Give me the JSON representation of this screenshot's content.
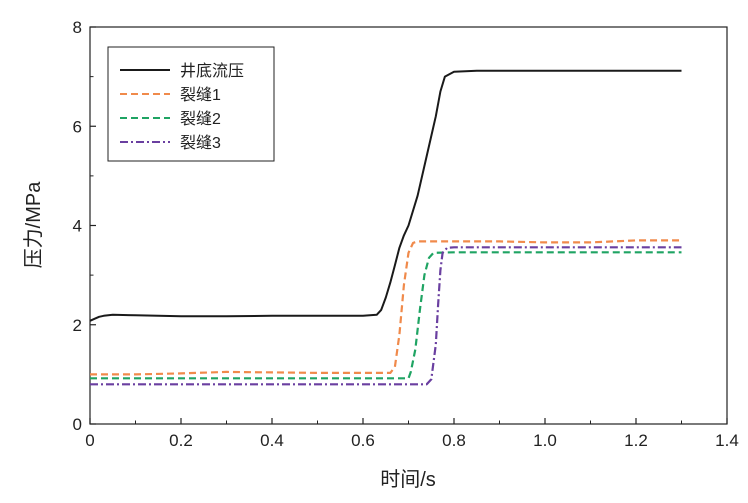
{
  "chart_data": {
    "type": "line",
    "title": "",
    "xlabel": "时间/s",
    "ylabel": "压力/MPa",
    "xlim": [
      0,
      1.4
    ],
    "ylim": [
      0,
      8
    ],
    "xticks": [
      "0",
      "0.2",
      "0.4",
      "0.6",
      "0.8",
      "1.0",
      "1.2",
      "1.4"
    ],
    "yticks": [
      "0",
      "2",
      "4",
      "6",
      "8"
    ],
    "grid": false,
    "legend_position": "top-left",
    "series": [
      {
        "name": "井底流压",
        "color": "#1a1a1a",
        "dash": "solid",
        "points": [
          [
            0.0,
            2.08
          ],
          [
            0.01,
            2.12
          ],
          [
            0.02,
            2.16
          ],
          [
            0.03,
            2.18
          ],
          [
            0.05,
            2.2
          ],
          [
            0.1,
            2.19
          ],
          [
            0.2,
            2.17
          ],
          [
            0.3,
            2.17
          ],
          [
            0.4,
            2.18
          ],
          [
            0.5,
            2.18
          ],
          [
            0.6,
            2.18
          ],
          [
            0.63,
            2.2
          ],
          [
            0.64,
            2.3
          ],
          [
            0.65,
            2.55
          ],
          [
            0.66,
            2.85
          ],
          [
            0.67,
            3.2
          ],
          [
            0.68,
            3.55
          ],
          [
            0.69,
            3.8
          ],
          [
            0.7,
            4.0
          ],
          [
            0.72,
            4.6
          ],
          [
            0.74,
            5.4
          ],
          [
            0.76,
            6.2
          ],
          [
            0.77,
            6.7
          ],
          [
            0.78,
            7.0
          ],
          [
            0.8,
            7.1
          ],
          [
            0.85,
            7.12
          ],
          [
            1.0,
            7.12
          ],
          [
            1.2,
            7.12
          ],
          [
            1.3,
            7.12
          ]
        ]
      },
      {
        "name": "裂缝1",
        "color": "#f08a4b",
        "dash": "dashed",
        "points": [
          [
            0.0,
            1.0
          ],
          [
            0.1,
            1.0
          ],
          [
            0.2,
            1.02
          ],
          [
            0.3,
            1.05
          ],
          [
            0.4,
            1.04
          ],
          [
            0.5,
            1.03
          ],
          [
            0.6,
            1.03
          ],
          [
            0.66,
            1.03
          ],
          [
            0.67,
            1.15
          ],
          [
            0.68,
            1.8
          ],
          [
            0.69,
            2.8
          ],
          [
            0.7,
            3.45
          ],
          [
            0.71,
            3.65
          ],
          [
            0.72,
            3.68
          ],
          [
            0.8,
            3.68
          ],
          [
            0.9,
            3.68
          ],
          [
            1.0,
            3.66
          ],
          [
            1.1,
            3.66
          ],
          [
            1.2,
            3.7
          ],
          [
            1.3,
            3.7
          ]
        ]
      },
      {
        "name": "裂缝2",
        "color": "#1fa463",
        "dash": "dashed",
        "points": [
          [
            0.0,
            0.92
          ],
          [
            0.2,
            0.92
          ],
          [
            0.4,
            0.92
          ],
          [
            0.6,
            0.92
          ],
          [
            0.7,
            0.92
          ],
          [
            0.705,
            1.05
          ],
          [
            0.715,
            1.5
          ],
          [
            0.725,
            2.3
          ],
          [
            0.735,
            3.0
          ],
          [
            0.745,
            3.35
          ],
          [
            0.755,
            3.45
          ],
          [
            0.8,
            3.46
          ],
          [
            1.0,
            3.46
          ],
          [
            1.2,
            3.46
          ],
          [
            1.3,
            3.46
          ]
        ]
      },
      {
        "name": "裂缝3",
        "color": "#6a3fa0",
        "dash": "dashdot",
        "points": [
          [
            0.0,
            0.8
          ],
          [
            0.2,
            0.8
          ],
          [
            0.4,
            0.8
          ],
          [
            0.6,
            0.8
          ],
          [
            0.74,
            0.8
          ],
          [
            0.75,
            0.9
          ],
          [
            0.76,
            1.6
          ],
          [
            0.765,
            2.4
          ],
          [
            0.77,
            3.1
          ],
          [
            0.775,
            3.45
          ],
          [
            0.785,
            3.55
          ],
          [
            0.8,
            3.56
          ],
          [
            1.0,
            3.56
          ],
          [
            1.2,
            3.56
          ],
          [
            1.3,
            3.56
          ]
        ]
      }
    ]
  }
}
